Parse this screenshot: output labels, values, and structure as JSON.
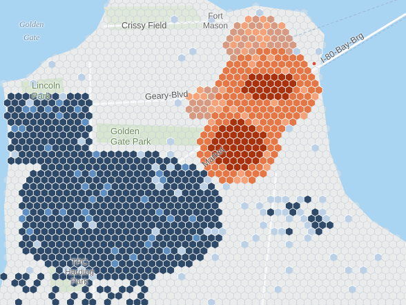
{
  "map": {
    "colors": {
      "water": "#a9d4f2",
      "land": "#ececea",
      "park": "#cfe2c0",
      "road": "#ffffff",
      "hex_outline": "#ffffff",
      "empty_hex": "#e9ebee",
      "empty_hex_stroke": "#c4cdd6",
      "navy": "#2e4a68",
      "light_blue": "#bcd0e6",
      "mid_blue": "#5f8fc0",
      "dark_red": "#a8320e",
      "mid_orange": "#e57646",
      "light_orange": "#f3a27a",
      "salmon": "#d69a82"
    },
    "labels": {
      "golden_gate": "Golden\nGate",
      "crissy_field": "Crissy Field",
      "fort_mason": "Fort\nMason",
      "lincoln_park": "Lincoln\nPark",
      "geary_blvd": "Geary-Blvd",
      "golden_gate_park": "Golden\nGate Park",
      "bay_bridge": "I-80-Bay-Brg",
      "tpc_harding_park": "TPC\nHarding\nPark",
      "market": "Market"
    }
  }
}
